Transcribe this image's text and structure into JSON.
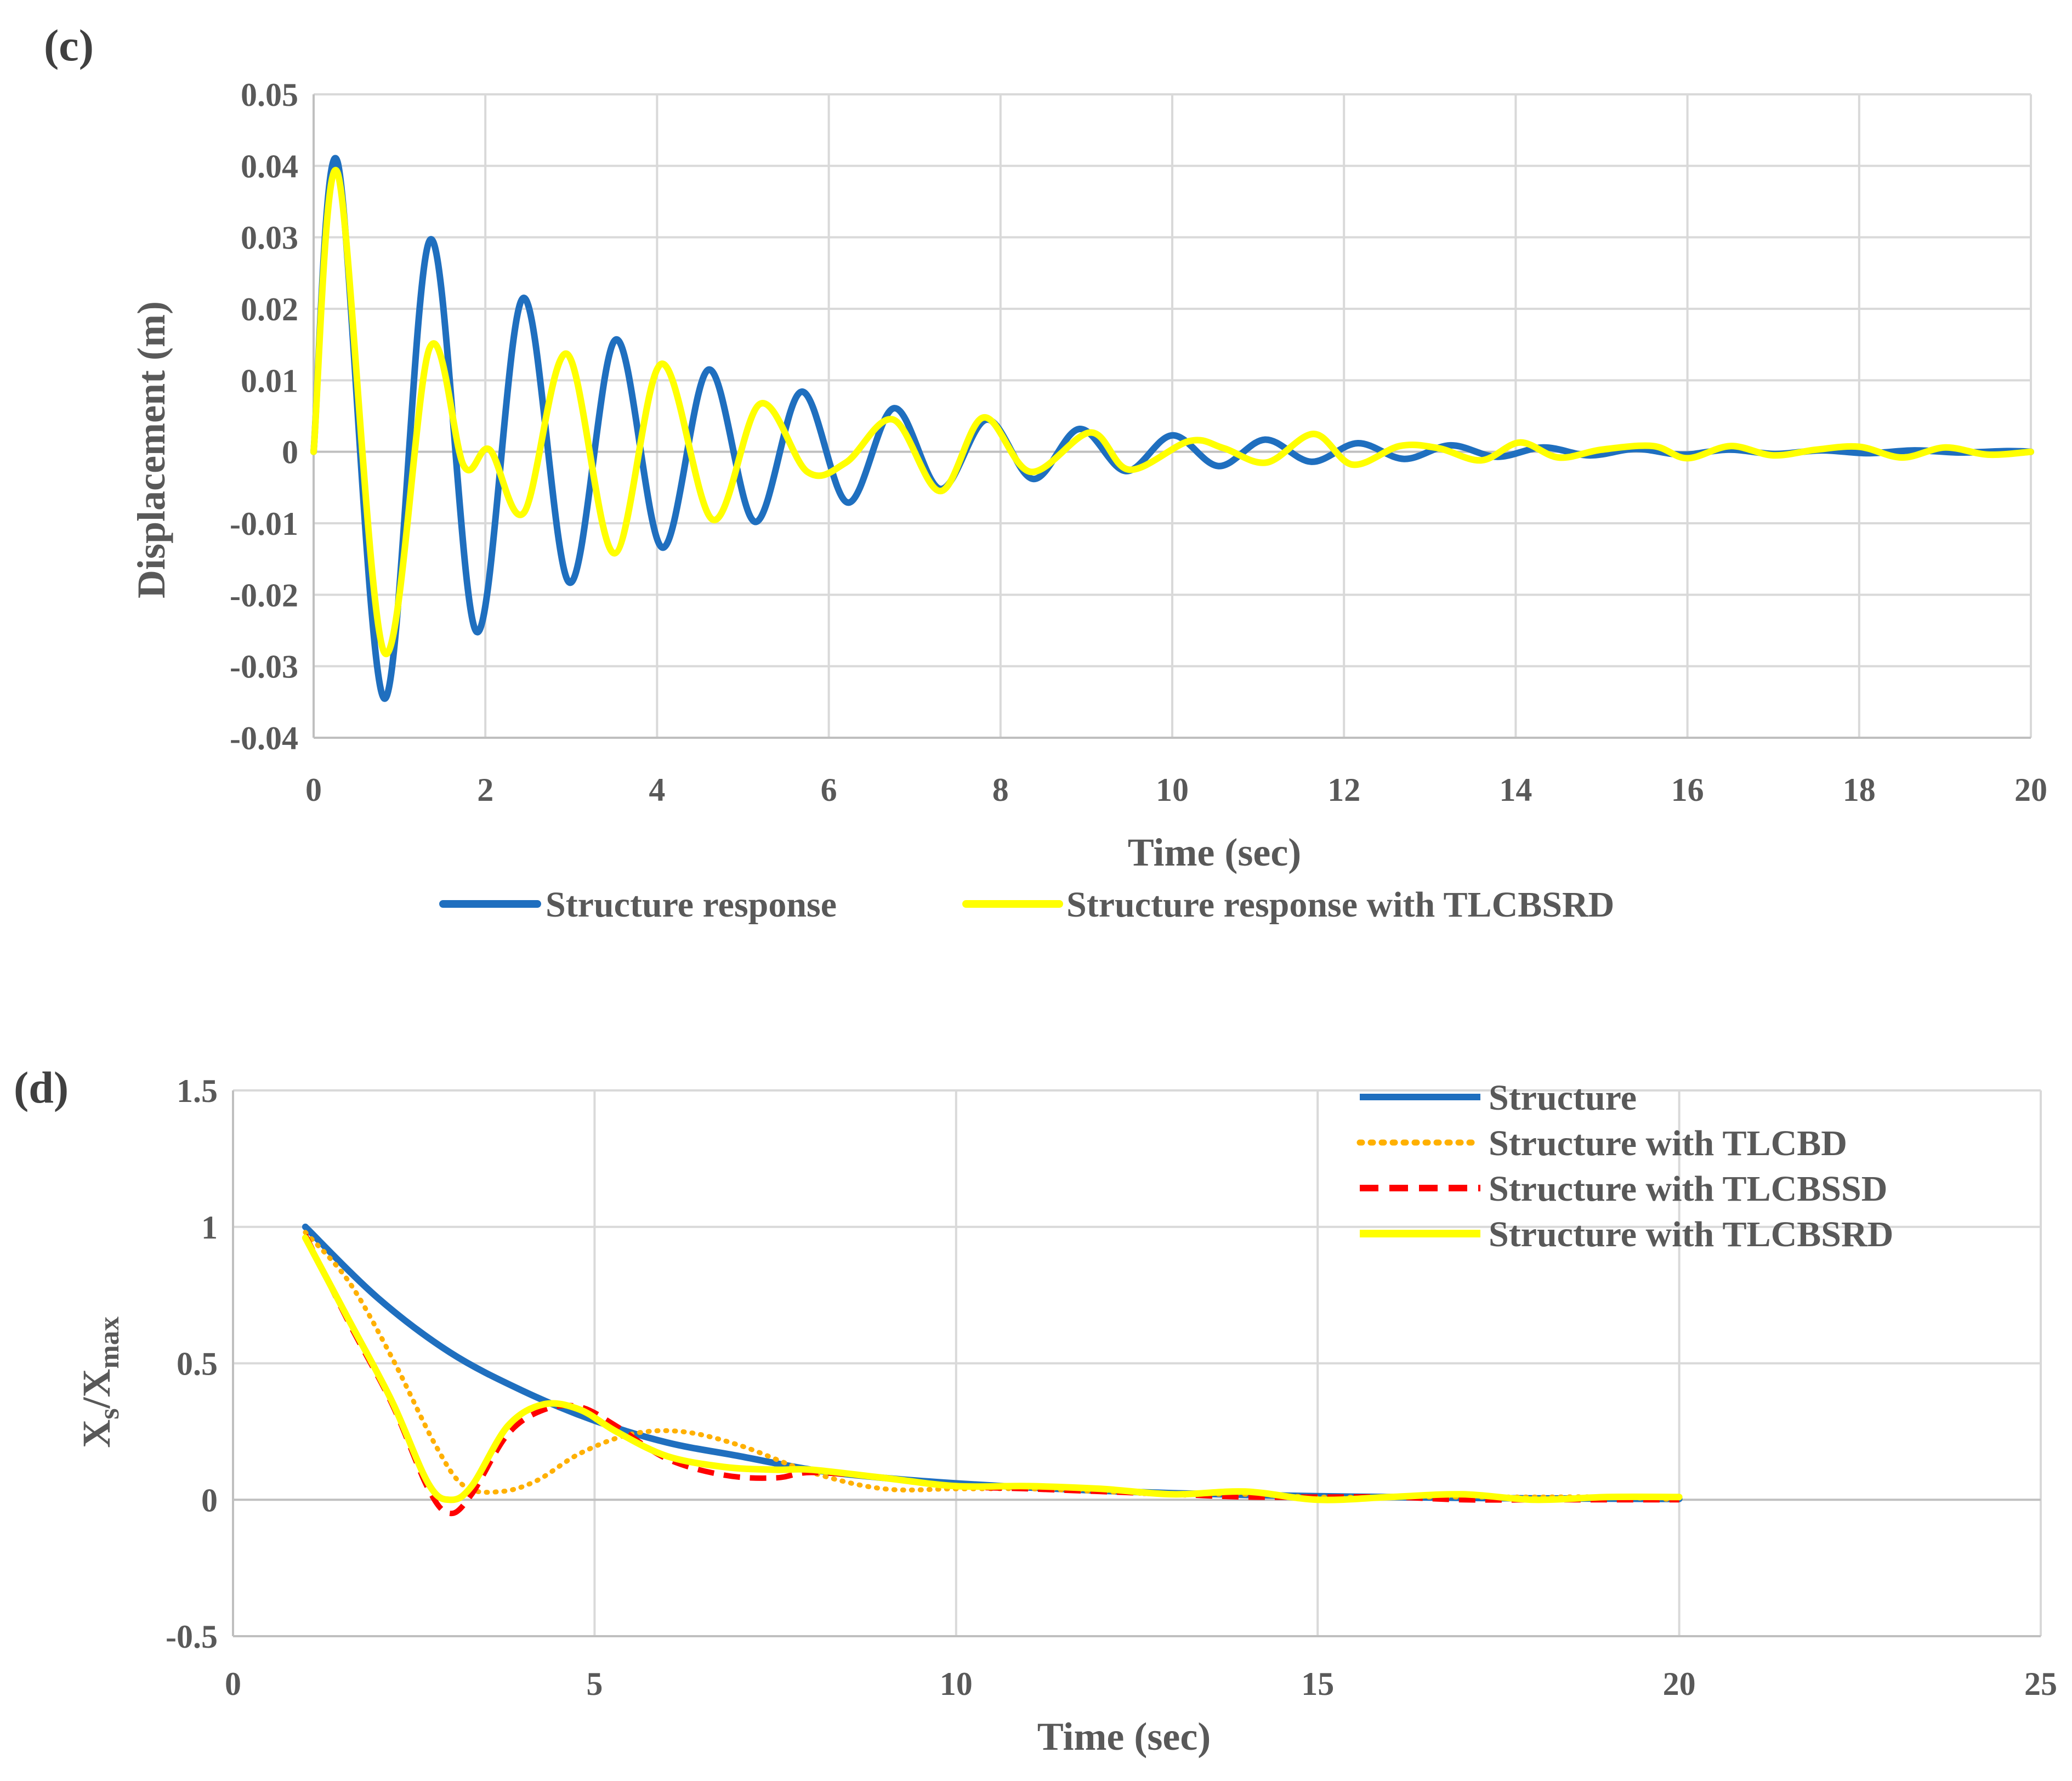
{
  "chart_data": [
    {
      "panel_label": "(c)",
      "type": "line",
      "xlabel": "Time (sec)",
      "ylabel": "Displacement (m)",
      "xlim": [
        0,
        20
      ],
      "ylim": [
        -0.04,
        0.05
      ],
      "xticks": [
        0,
        2,
        4,
        6,
        8,
        10,
        12,
        14,
        16,
        18,
        20
      ],
      "yticks": [
        -0.04,
        -0.03,
        -0.02,
        -0.01,
        0,
        0.01,
        0.02,
        0.03,
        0.04,
        0.05
      ],
      "xtick_labels": [
        "0",
        "2",
        "4",
        "6",
        "8",
        "10",
        "12",
        "14",
        "16",
        "18",
        "20"
      ],
      "ytick_labels": [
        "-0.04",
        "-0.03",
        "-0.02",
        "-0.01",
        "0",
        "0.01",
        "0.02",
        "0.03",
        "0.04",
        "0.05"
      ],
      "grid": true,
      "legend_position": "bottom",
      "series": [
        {
          "name": "Structure response",
          "color": "#1f6fbf",
          "style": "solid",
          "x": [
            0,
            0.28,
            0.82,
            1.36,
            1.9,
            2.44,
            2.98,
            3.52,
            4.06,
            4.6,
            5.14,
            5.68,
            6.22,
            6.76,
            7.3,
            7.84,
            8.38,
            8.92,
            9.46,
            10.0,
            10.54,
            11.08,
            11.62,
            12.16,
            12.7,
            13.24,
            13.78,
            14.32,
            14.86,
            15.4,
            15.94,
            16.48,
            17.02,
            17.56,
            18.1,
            18.64,
            19.18,
            19.72,
            20.0
          ],
          "y": [
            0,
            0.0405,
            -0.0345,
            0.0297,
            -0.0252,
            0.0215,
            -0.0183,
            0.0157,
            -0.0134,
            0.0115,
            -0.0098,
            0.0084,
            -0.0071,
            0.0061,
            -0.0052,
            0.0045,
            -0.0038,
            0.0032,
            -0.0027,
            0.0023,
            -0.002,
            0.0017,
            -0.0014,
            0.0012,
            -0.001,
            0.0009,
            -0.0007,
            0.0006,
            -0.0005,
            0.0004,
            -0.0004,
            0.0003,
            -0.0003,
            0.0002,
            -0.0002,
            0.0002,
            -0.0001,
            0.0001,
            0
          ]
        },
        {
          "name": "Structure response with TLCBSRD",
          "color": "#ffff00",
          "style": "solid",
          "x": [
            0,
            0.28,
            0.82,
            1.35,
            1.75,
            2.05,
            2.45,
            2.95,
            3.5,
            4.05,
            4.65,
            5.2,
            5.75,
            6.2,
            6.75,
            7.3,
            7.8,
            8.35,
            9.05,
            9.5,
            10.2,
            10.6,
            11.1,
            11.65,
            12.1,
            12.65,
            13.1,
            13.6,
            14.05,
            14.5,
            15.0,
            15.6,
            16.0,
            16.5,
            17.0,
            17.5,
            18.0,
            18.5,
            19.0,
            19.5,
            20.0
          ],
          "y": [
            0,
            0.039,
            -0.028,
            0.0145,
            -0.002,
            0.0003,
            -0.0085,
            0.0137,
            -0.0142,
            0.0123,
            -0.0095,
            0.0067,
            -0.0028,
            -0.0015,
            0.0045,
            -0.0055,
            0.0048,
            -0.0028,
            0.0027,
            -0.0025,
            0.0015,
            0.0005,
            -0.0015,
            0.0025,
            -0.0018,
            0.0008,
            0.0005,
            -0.0012,
            0.0013,
            -0.0008,
            0.0003,
            0.0008,
            -0.0009,
            0.0008,
            -0.0005,
            0.0003,
            0.0007,
            -0.0008,
            0.0006,
            -0.0004,
            0
          ]
        }
      ]
    },
    {
      "panel_label": "(d)",
      "type": "line",
      "xlabel": "Time (sec)",
      "ylabel_main": "X",
      "ylabel_sub1": "s",
      "ylabel_mid": "/X",
      "ylabel_sub2": "max",
      "xlim": [
        0,
        25
      ],
      "ylim": [
        -0.5,
        1.5
      ],
      "xticks": [
        0,
        5,
        10,
        15,
        20,
        25
      ],
      "yticks": [
        -0.5,
        0,
        0.5,
        1,
        1.5
      ],
      "xtick_labels": [
        "0",
        "5",
        "10",
        "15",
        "20",
        "25"
      ],
      "ytick_labels": [
        "-0.5",
        "0",
        "0.5",
        "1",
        "1.5"
      ],
      "grid": true,
      "legend_position": "top-right",
      "series": [
        {
          "name": "Structure",
          "color": "#1f6fbf",
          "style": "solid",
          "x": [
            1,
            2,
            3,
            4,
            5,
            6,
            7,
            8,
            9,
            10,
            11,
            12,
            13,
            14,
            15,
            16,
            17,
            18,
            19,
            20
          ],
          "y": [
            1.0,
            0.74,
            0.54,
            0.4,
            0.29,
            0.21,
            0.16,
            0.11,
            0.08,
            0.06,
            0.045,
            0.033,
            0.024,
            0.018,
            0.013,
            0.01,
            0.007,
            0.005,
            0.004,
            0.003
          ]
        },
        {
          "name": "Structure with TLCBD",
          "color": "#ffb000",
          "style": "dotted",
          "x": [
            1,
            1.6,
            2.2,
            2.8,
            3.2,
            3.7,
            4.2,
            4.8,
            5.5,
            6.2,
            7.0,
            8.0,
            9.0,
            10.0,
            11.0,
            12.0,
            13.0,
            14.0,
            15.0,
            16.0,
            17.0,
            18.0,
            19.0,
            20.0
          ],
          "y": [
            0.98,
            0.8,
            0.52,
            0.2,
            0.05,
            0.03,
            0.07,
            0.17,
            0.24,
            0.25,
            0.2,
            0.1,
            0.04,
            0.04,
            0.04,
            0.03,
            0.02,
            0.02,
            0.01,
            0.01,
            0.01,
            0.01,
            0.01,
            0.0
          ]
        },
        {
          "name": "Structure with TLCBSSD",
          "color": "#ff0000",
          "style": "dashed",
          "x": [
            1,
            1.6,
            2.2,
            2.7,
            3.0,
            3.3,
            3.8,
            4.3,
            4.8,
            5.3,
            6.0,
            6.8,
            7.5,
            8.0,
            9.0,
            10.0,
            11.0,
            12.0,
            13.0,
            14.0,
            15.0,
            16.0,
            17.0,
            18.0,
            19.0,
            20.0
          ],
          "y": [
            0.97,
            0.65,
            0.35,
            0.04,
            -0.05,
            0.02,
            0.24,
            0.33,
            0.34,
            0.27,
            0.15,
            0.09,
            0.08,
            0.1,
            0.08,
            0.05,
            0.04,
            0.03,
            0.02,
            0.01,
            0.01,
            0.01,
            0.0,
            0.0,
            0.0,
            0.0
          ]
        },
        {
          "name": "Structure with TLCBSRD",
          "color": "#ffff00",
          "style": "solid",
          "x": [
            1,
            1.6,
            2.2,
            2.7,
            3.0,
            3.3,
            3.8,
            4.3,
            4.8,
            5.3,
            6.0,
            6.8,
            7.5,
            8.0,
            9.0,
            10.0,
            11.0,
            12.0,
            13.0,
            14.0,
            15.0,
            16.0,
            17.0,
            18.0,
            19.0,
            20.0
          ],
          "y": [
            0.96,
            0.66,
            0.36,
            0.06,
            0.0,
            0.05,
            0.27,
            0.35,
            0.33,
            0.25,
            0.16,
            0.12,
            0.11,
            0.11,
            0.08,
            0.05,
            0.05,
            0.04,
            0.02,
            0.03,
            0.0,
            0.01,
            0.02,
            0.0,
            0.01,
            0.01
          ]
        }
      ]
    }
  ]
}
